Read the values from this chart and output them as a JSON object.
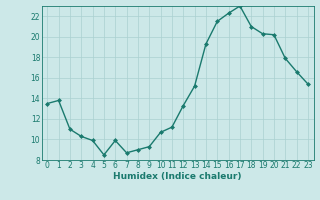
{
  "x": [
    0,
    1,
    2,
    3,
    4,
    5,
    6,
    7,
    8,
    9,
    10,
    11,
    12,
    13,
    14,
    15,
    16,
    17,
    18,
    19,
    20,
    21,
    22,
    23
  ],
  "y": [
    13.5,
    13.8,
    11.0,
    10.3,
    9.9,
    8.5,
    9.9,
    8.7,
    9.0,
    9.3,
    10.7,
    11.2,
    13.3,
    15.2,
    19.3,
    21.5,
    22.3,
    23.0,
    21.0,
    20.3,
    20.2,
    17.9,
    16.6,
    15.4
  ],
  "line_color": "#1a7a6e",
  "marker": "D",
  "marker_size": 2.0,
  "bg_color": "#cce8e8",
  "grid_color": "#aad0d0",
  "xlabel": "Humidex (Indice chaleur)",
  "xlim": [
    -0.5,
    23.5
  ],
  "ylim": [
    8,
    23
  ],
  "yticks": [
    8,
    10,
    12,
    14,
    16,
    18,
    20,
    22
  ],
  "xticks": [
    0,
    1,
    2,
    3,
    4,
    5,
    6,
    7,
    8,
    9,
    10,
    11,
    12,
    13,
    14,
    15,
    16,
    17,
    18,
    19,
    20,
    21,
    22,
    23
  ],
  "xlabel_fontsize": 6.5,
  "tick_fontsize": 5.5,
  "line_width": 1.0
}
